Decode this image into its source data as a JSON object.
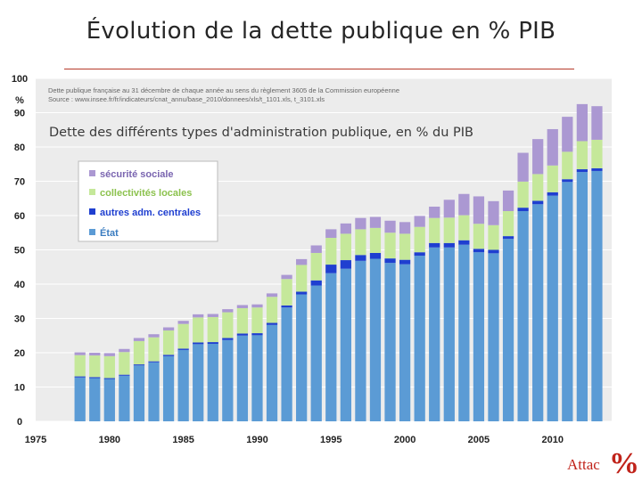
{
  "slide": {
    "title": "Évolution de la dette publique en % PIB",
    "brand_text": "Attac",
    "brand_symbol": "%"
  },
  "colors": {
    "etat": "#5b9bd5",
    "autres": "#1f3fd0",
    "collectivites": "#c5e89a",
    "securite": "#ab98d2",
    "title_rule": "#b63a2a",
    "brand": "#c0231a"
  },
  "chart_data": {
    "type": "bar",
    "stacked": true,
    "title": "Dette des différents types d'administration publique, en % du PIB",
    "source_lines": [
      "Dette publique française au 31 décembre de chaque année au sens du règlement 3605 de la Commission européenne",
      "Source : www.insee.fr/fr/indicateurs/cnat_annu/base_2010/donnees/xls/t_1101.xls, t_3101.xls"
    ],
    "y_unit": "%",
    "ylim": [
      0,
      100
    ],
    "y_ticks": [
      0,
      10,
      20,
      30,
      40,
      50,
      60,
      70,
      80,
      90,
      100
    ],
    "xlim": [
      1975,
      2014
    ],
    "x_ticks": [
      1975,
      1980,
      1985,
      1990,
      1995,
      2000,
      2005,
      2010
    ],
    "years": [
      1978,
      1979,
      1980,
      1981,
      1982,
      1983,
      1984,
      1985,
      1986,
      1987,
      1988,
      1989,
      1990,
      1991,
      1992,
      1993,
      1994,
      1995,
      1996,
      1997,
      1998,
      1999,
      2000,
      2001,
      2002,
      2003,
      2004,
      2005,
      2006,
      2007,
      2008,
      2009,
      2010,
      2011,
      2012,
      2013
    ],
    "series": [
      {
        "name": "État",
        "key": "etat",
        "values": [
          12.8,
          12.6,
          12.3,
          13.3,
          16.3,
          17.2,
          19.0,
          20.8,
          22.5,
          22.6,
          23.7,
          25.0,
          25.1,
          28.1,
          33.2,
          37.0,
          39.6,
          43.2,
          44.5,
          46.8,
          47.4,
          46.2,
          45.8,
          48.3,
          50.7,
          50.7,
          51.5,
          49.3,
          49.0,
          53.2,
          61.3,
          63.3,
          65.8,
          69.8,
          72.7,
          73.0
        ]
      },
      {
        "name": "autres adm. centrales",
        "key": "autres",
        "values": [
          0.3,
          0.3,
          0.3,
          0.3,
          0.3,
          0.3,
          0.4,
          0.4,
          0.5,
          0.5,
          0.6,
          0.6,
          0.6,
          0.6,
          0.6,
          0.8,
          1.5,
          2.5,
          2.5,
          1.7,
          1.7,
          1.3,
          1.3,
          1.0,
          1.3,
          1.3,
          1.3,
          1.0,
          1.0,
          0.8,
          1.0,
          1.0,
          1.0,
          0.8,
          0.8,
          0.8
        ]
      },
      {
        "name": "collectivités locales",
        "key": "collectivites",
        "values": [
          6.2,
          6.3,
          6.4,
          6.6,
          6.8,
          7.0,
          7.1,
          7.2,
          7.3,
          7.3,
          7.5,
          7.4,
          7.5,
          7.6,
          7.7,
          7.8,
          8.0,
          7.8,
          7.7,
          7.5,
          7.3,
          7.5,
          7.6,
          7.4,
          7.3,
          7.4,
          7.3,
          7.3,
          7.2,
          7.3,
          7.6,
          7.8,
          7.8,
          8.0,
          8.2,
          8.3
        ]
      },
      {
        "name": "sécurité sociale",
        "key": "securite",
        "values": [
          0.8,
          0.8,
          0.9,
          0.9,
          0.9,
          0.9,
          0.9,
          0.9,
          0.9,
          0.9,
          0.9,
          0.9,
          0.9,
          1.0,
          1.2,
          1.7,
          2.2,
          2.5,
          3.0,
          3.3,
          3.2,
          3.5,
          3.4,
          3.2,
          3.3,
          5.2,
          6.2,
          8.0,
          7.0,
          6.0,
          8.4,
          10.2,
          10.6,
          10.2,
          10.8,
          9.8
        ]
      }
    ],
    "legend": {
      "placement": "top-left",
      "order": [
        "securite",
        "collectivites",
        "autres",
        "etat"
      ],
      "labels": {
        "securite": "sécurité sociale",
        "collectivites": "collectivités locales",
        "autres": "autres adm. centrales",
        "etat": "État"
      }
    }
  }
}
